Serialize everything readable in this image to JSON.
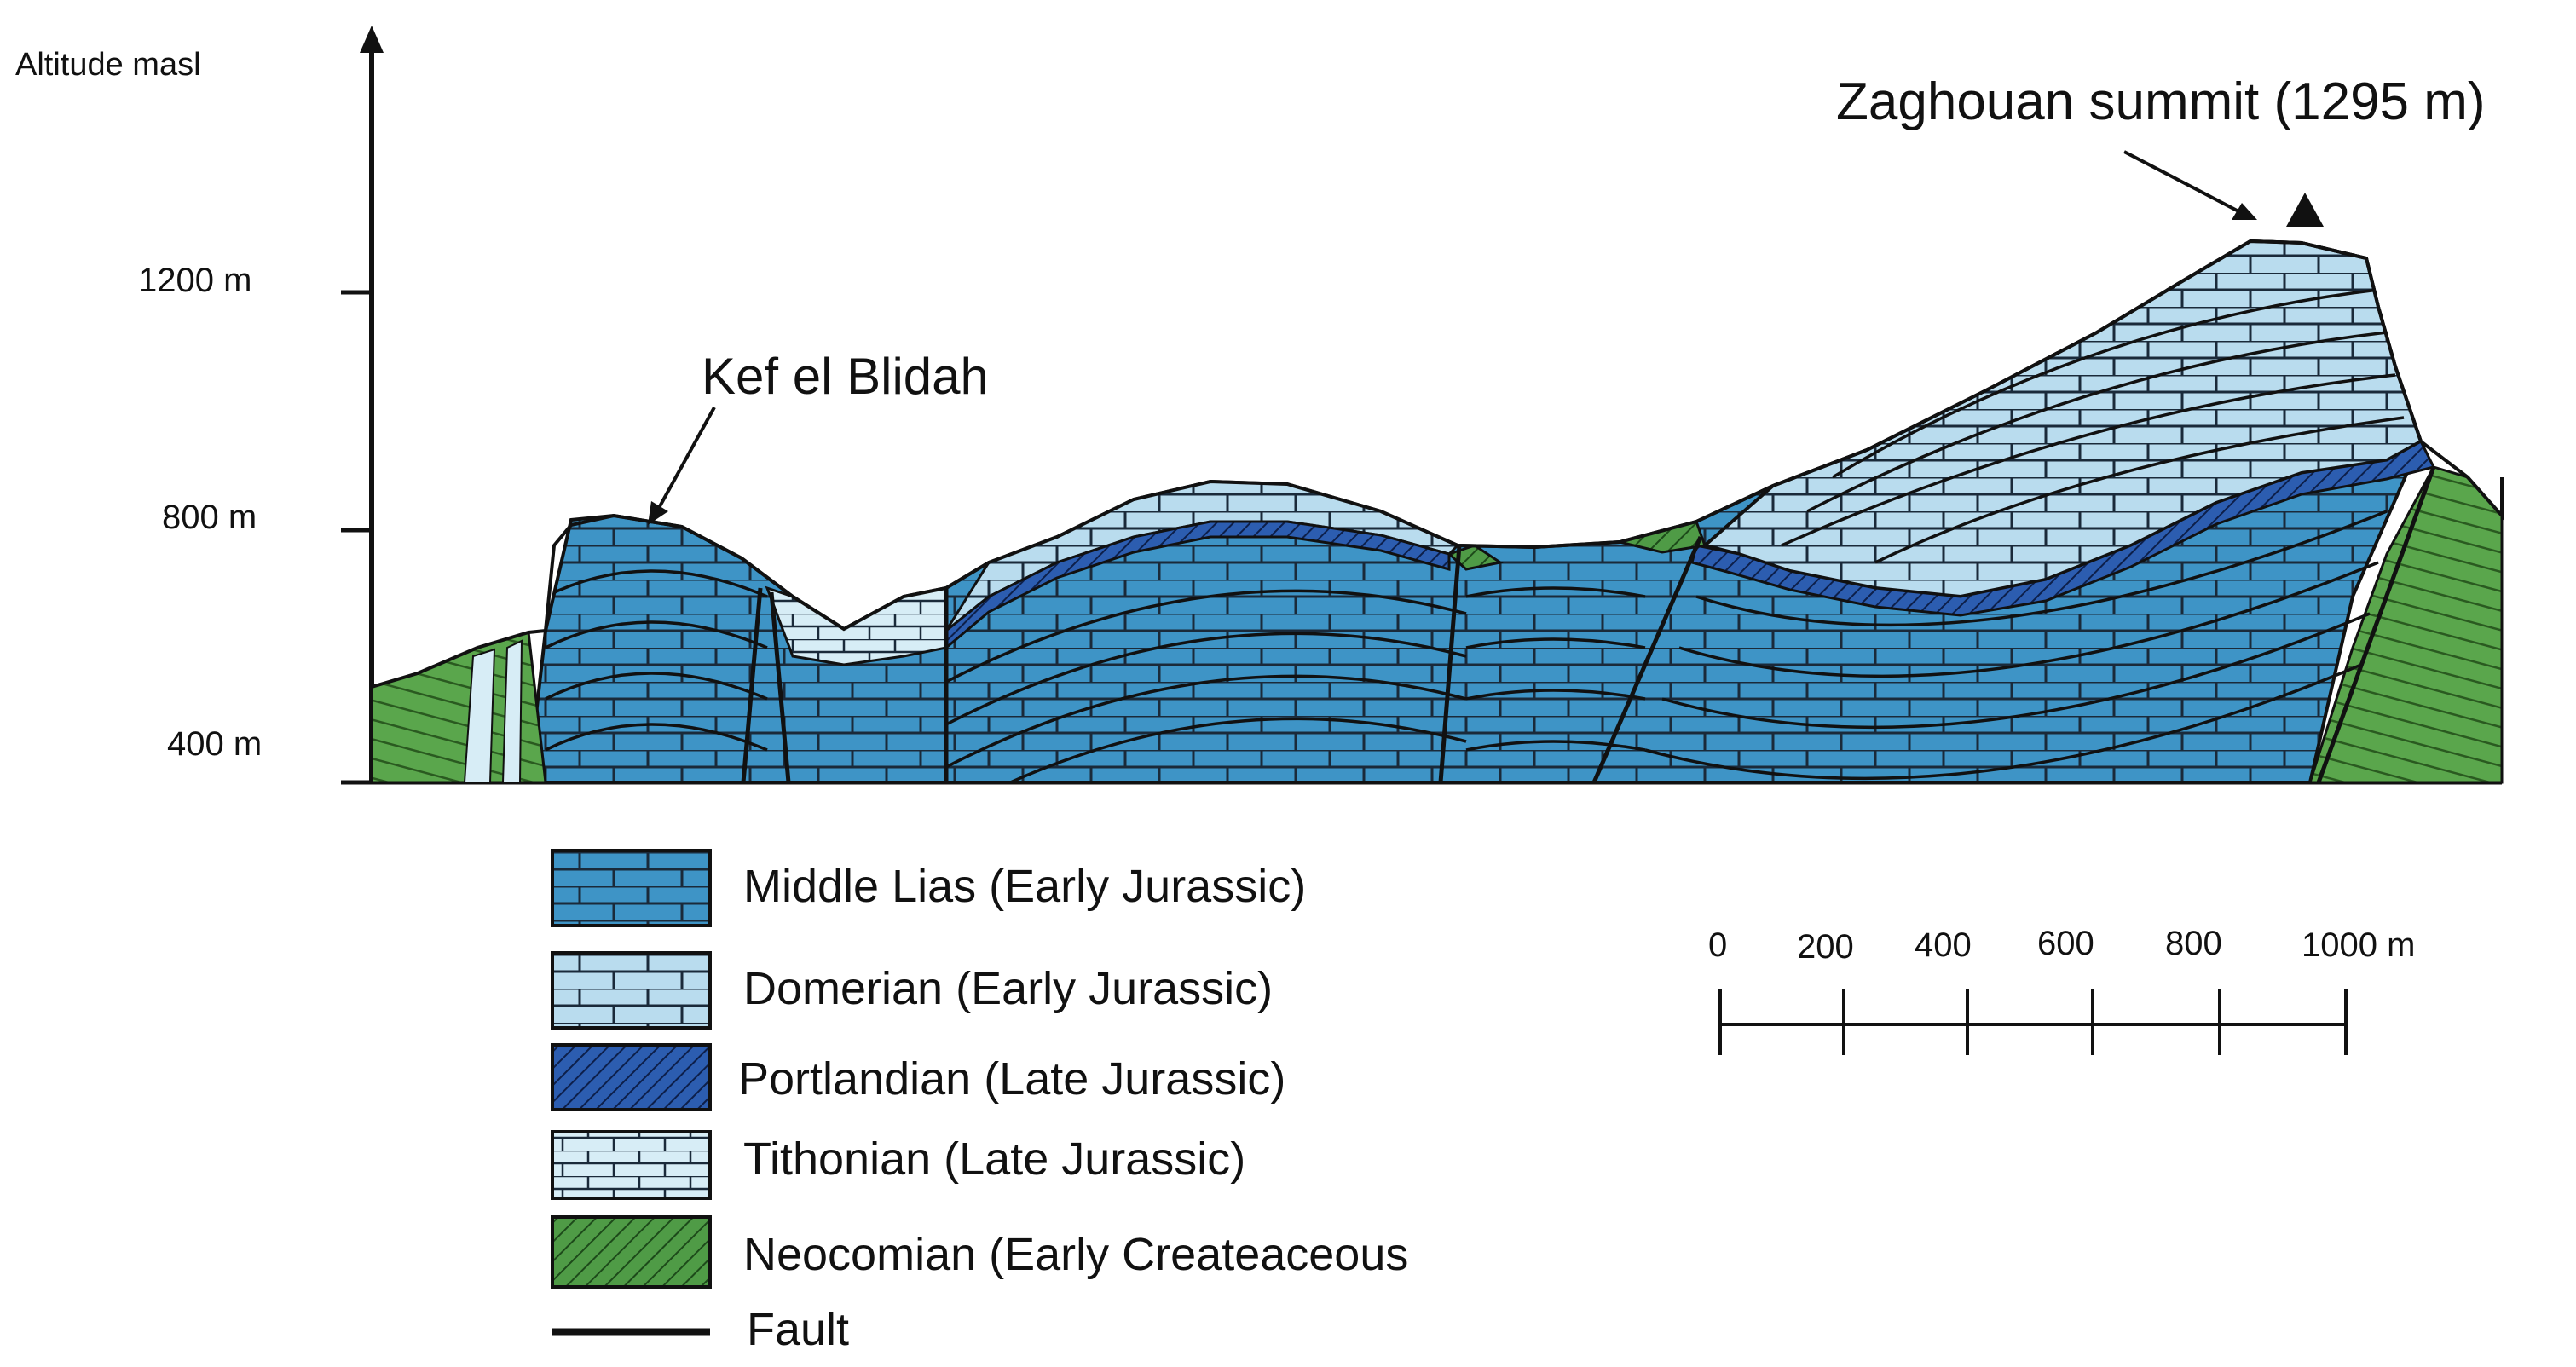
{
  "axis": {
    "title": "Altitude masl",
    "ticks": [
      "1200 m",
      "800 m",
      "400 m"
    ]
  },
  "annotations": {
    "peak_left": "Kef el Blidah",
    "peak_right": "Zaghouan summit (1295 m)"
  },
  "legend": [
    {
      "label": "Middle Lias (Early Jurassic)",
      "pattern": "brick",
      "color": "#3e94c6"
    },
    {
      "label": "Domerian (Early Jurassic)",
      "pattern": "brick",
      "color": "#b9dcee"
    },
    {
      "label": "Portlandian (Late Jurassic)",
      "pattern": "hatch",
      "color": "#2c5db0"
    },
    {
      "label": "Tithonian (Late Jurassic)",
      "pattern": "brick",
      "color": "#d7edf6"
    },
    {
      "label": "Neocomian (Early  Createaceous",
      "pattern": "hatch",
      "color": "#4f9b46"
    },
    {
      "label": "Fault",
      "pattern": "line",
      "color": "#111111"
    }
  ],
  "scale_bar": {
    "labels": [
      "0",
      "200",
      "400",
      "600",
      "800",
      "1000 m"
    ]
  },
  "colors": {
    "middle_lias": "#3e94c6",
    "domerian": "#b9dcee",
    "portlandian": "#2c5db0",
    "tithonian": "#d7edf6",
    "neocomian": "#4f9b46",
    "fault": "#111111"
  }
}
